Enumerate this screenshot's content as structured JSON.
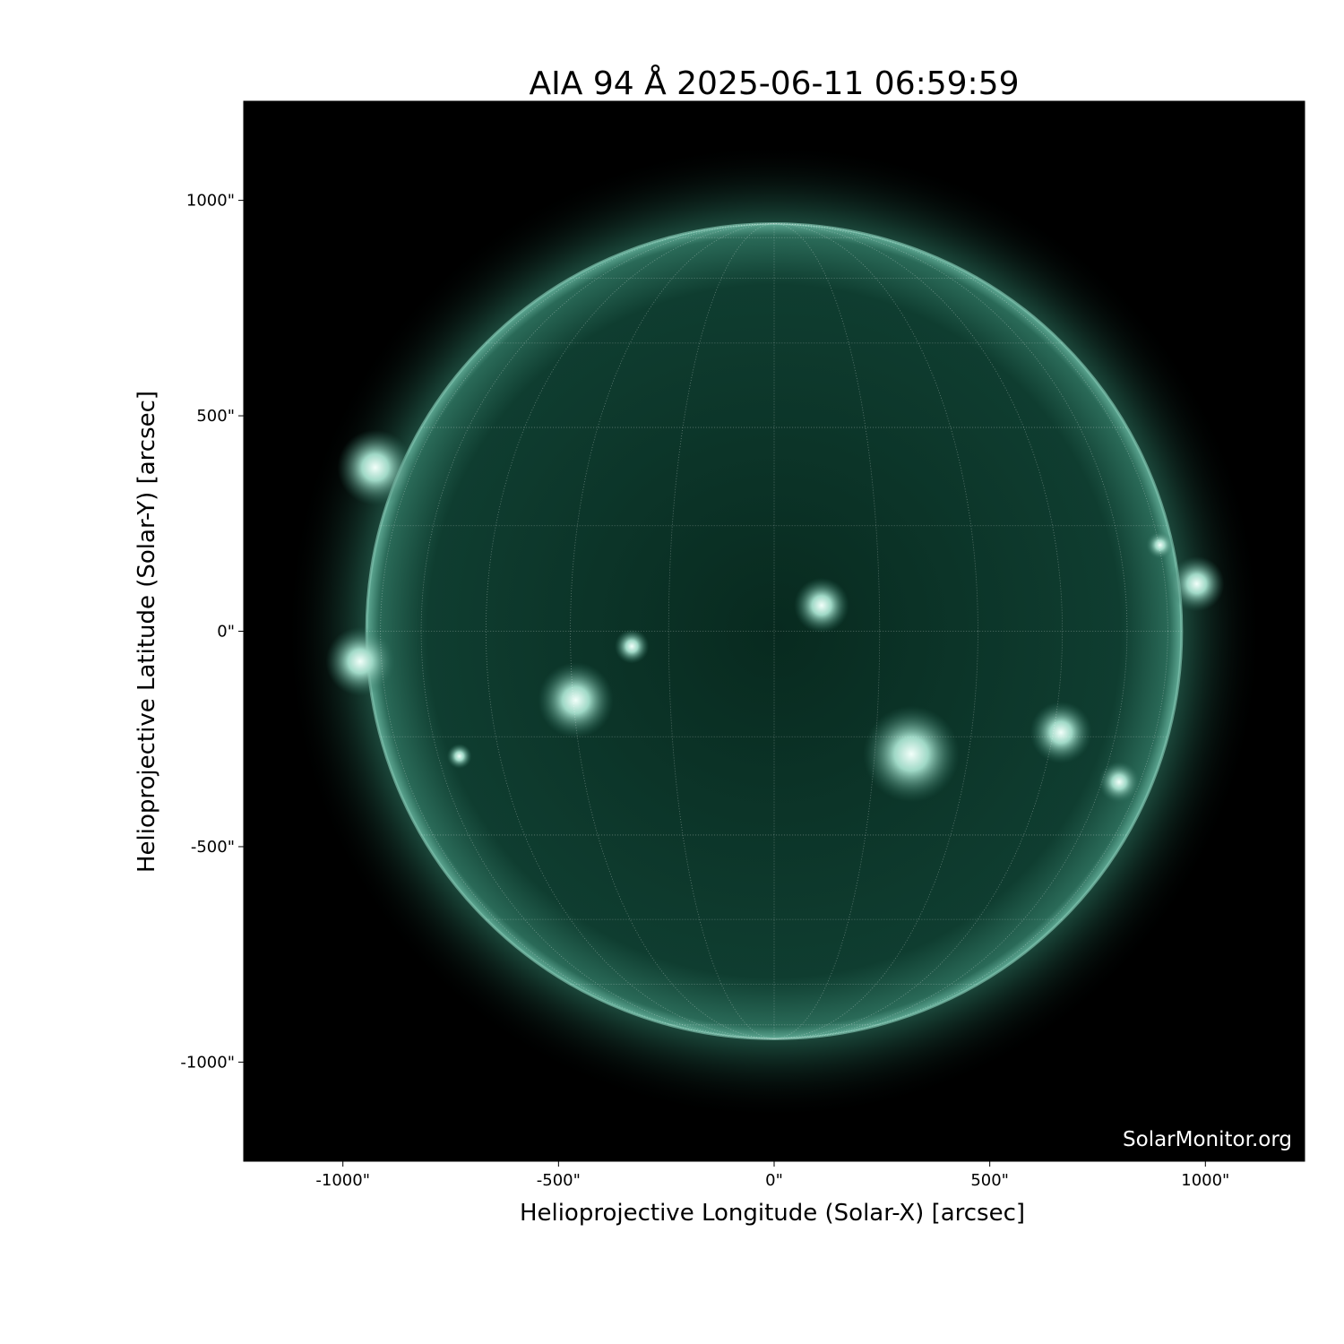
{
  "title": "AIA 94 Å 2025-06-11 06:59:59",
  "xlabel": "Helioprojective Longitude (Solar-X) [arcsec]",
  "ylabel": "Helioprojective Latitude (Solar-Y) [arcsec]",
  "watermark": "SolarMonitor.org",
  "x_ticks": [
    -1000,
    -500,
    0,
    500,
    1000
  ],
  "y_ticks": [
    1000,
    500,
    0,
    -500,
    -1000
  ],
  "x_tick_labels": [
    "-1000\"",
    "-500\"",
    "0\"",
    "500\"",
    "1000\""
  ],
  "y_tick_labels": [
    "1000\"",
    "500\"",
    "0\"",
    "-500\"",
    "-1000\""
  ],
  "xlim": [
    -1230,
    1230
  ],
  "ylim": [
    -1230,
    1230
  ],
  "solar_radius_arcsec": 945,
  "grid_spacing_deg": 15,
  "colors": {
    "background": "#000000",
    "disk": "#0d3a2c",
    "limb": "#4f9c86",
    "bright": "#e8fff6"
  }
}
